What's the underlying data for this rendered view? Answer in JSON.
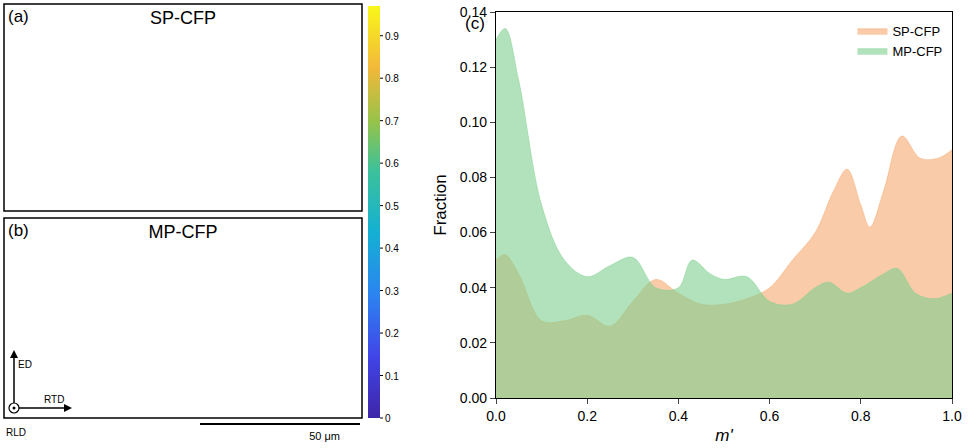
{
  "maps": {
    "panels": [
      {
        "letter": "(a)",
        "title": "SP-CFP"
      },
      {
        "letter": "(b)",
        "title": "MP-CFP"
      }
    ],
    "colorbar": {
      "range": [
        0,
        0.97
      ],
      "ticks": [
        0,
        0.1,
        0.2,
        0.3,
        0.4,
        0.5,
        0.6,
        0.7,
        0.8,
        0.9
      ]
    },
    "axes": {
      "up": "ED",
      "right": "RTD",
      "normal": "RLD"
    },
    "scale_bar": "50 μm"
  },
  "chart_data": {
    "type": "area",
    "letter": "(c)",
    "x_label": "m'",
    "y_label": "Fraction",
    "xlim": [
      0,
      1
    ],
    "ylim": [
      0,
      0.14
    ],
    "xticks": [
      {
        "value": 0,
        "label": "0.0"
      },
      {
        "value": 0.2,
        "label": "0.2"
      },
      {
        "value": 0.4,
        "label": "0.4"
      },
      {
        "value": 0.6,
        "label": "0.6"
      },
      {
        "value": 0.8,
        "label": "0.8"
      },
      {
        "value": 1,
        "label": "1.0"
      }
    ],
    "yticks": [
      {
        "value": 0,
        "label": "0.00"
      },
      {
        "value": 0.02,
        "label": "0.02"
      },
      {
        "value": 0.04,
        "label": "0.04"
      },
      {
        "value": 0.06,
        "label": "0.06"
      },
      {
        "value": 0.08,
        "label": "0.08"
      },
      {
        "value": 0.1,
        "label": "0.10"
      },
      {
        "value": 0.12,
        "label": "0.12"
      },
      {
        "value": 0.14,
        "label": "0.14"
      }
    ],
    "legend": "top right",
    "series": [
      {
        "name": "SP-CFP",
        "color": "#f5a86e",
        "x": [
          0,
          0.02,
          0.05,
          0.1,
          0.15,
          0.2,
          0.25,
          0.3,
          0.35,
          0.4,
          0.45,
          0.5,
          0.55,
          0.6,
          0.65,
          0.7,
          0.74,
          0.77,
          0.8,
          0.82,
          0.85,
          0.89,
          0.93,
          0.97,
          1.0
        ],
        "values": [
          0.05,
          0.052,
          0.045,
          0.028,
          0.028,
          0.03,
          0.026,
          0.035,
          0.043,
          0.038,
          0.034,
          0.034,
          0.036,
          0.04,
          0.05,
          0.06,
          0.075,
          0.083,
          0.07,
          0.062,
          0.075,
          0.095,
          0.087,
          0.087,
          0.09
        ]
      },
      {
        "name": "MP-CFP",
        "color": "#7fcf8f",
        "x": [
          0,
          0.02,
          0.05,
          0.1,
          0.15,
          0.2,
          0.25,
          0.3,
          0.35,
          0.4,
          0.43,
          0.47,
          0.5,
          0.55,
          0.6,
          0.65,
          0.7,
          0.73,
          0.77,
          0.8,
          0.85,
          0.88,
          0.92,
          0.96,
          1.0
        ],
        "values": [
          0.13,
          0.134,
          0.115,
          0.07,
          0.05,
          0.044,
          0.048,
          0.051,
          0.04,
          0.04,
          0.05,
          0.045,
          0.043,
          0.044,
          0.035,
          0.034,
          0.04,
          0.042,
          0.038,
          0.04,
          0.045,
          0.047,
          0.038,
          0.036,
          0.038
        ]
      }
    ]
  }
}
